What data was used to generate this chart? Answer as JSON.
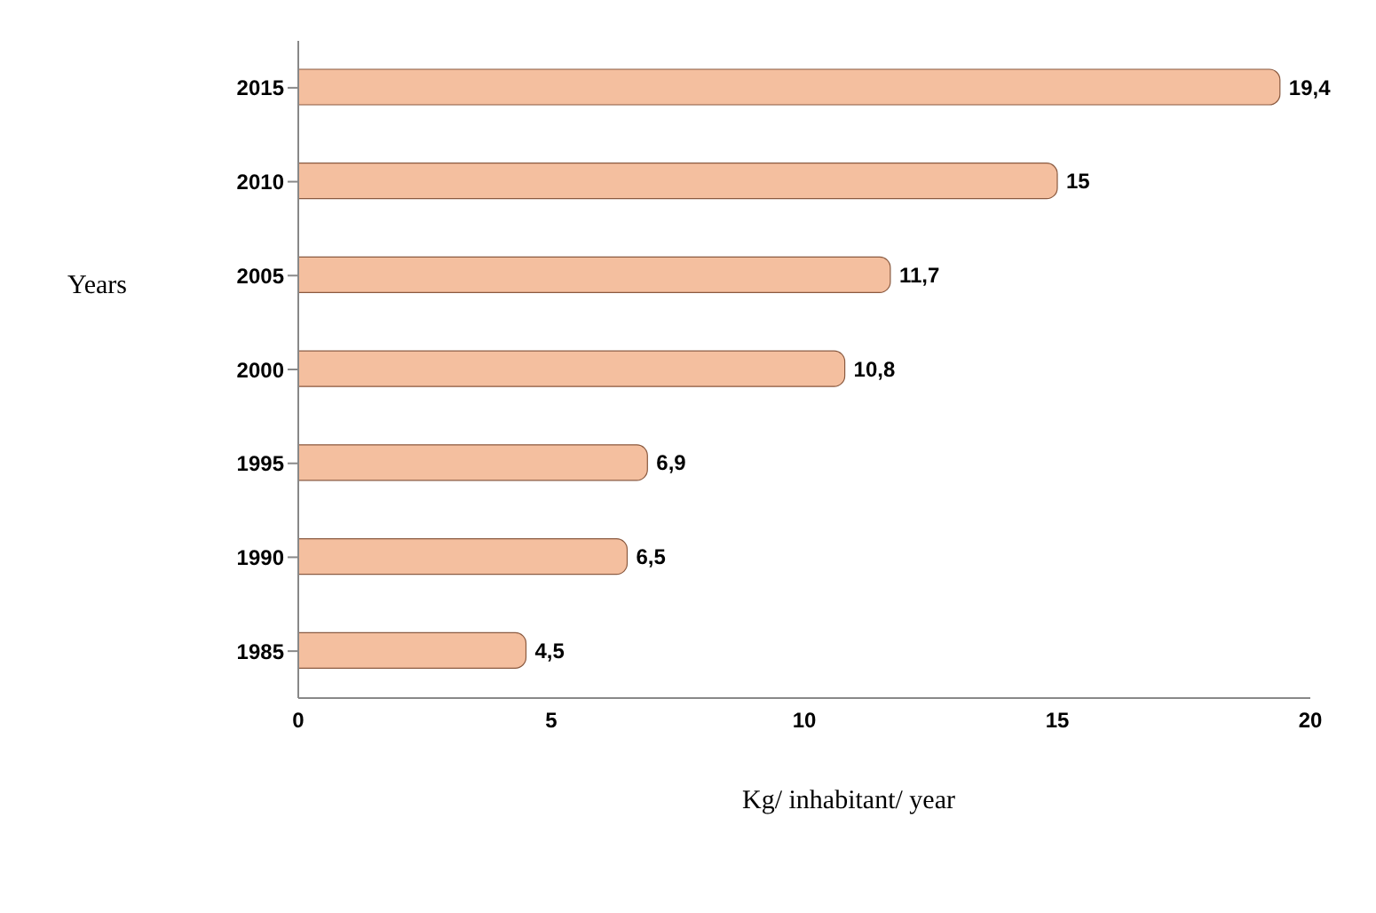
{
  "chart_data": {
    "type": "bar",
    "orientation": "horizontal",
    "categories": [
      "2015",
      "2010",
      "2005",
      "2000",
      "1995",
      "1990",
      "1985"
    ],
    "values": [
      19.4,
      15,
      11.7,
      10.8,
      6.9,
      6.5,
      4.5
    ],
    "value_labels": [
      "19,4",
      "15",
      "11,7",
      "10,8",
      "6,9",
      "6,5",
      "4,5"
    ],
    "color": "#f4bf9f",
    "xlim": [
      0,
      20
    ],
    "xticks": [
      0,
      5,
      10,
      15,
      20
    ],
    "xlabel": "Kg/ inhabitant/ year",
    "ylabel": "Years",
    "grid": false
  }
}
